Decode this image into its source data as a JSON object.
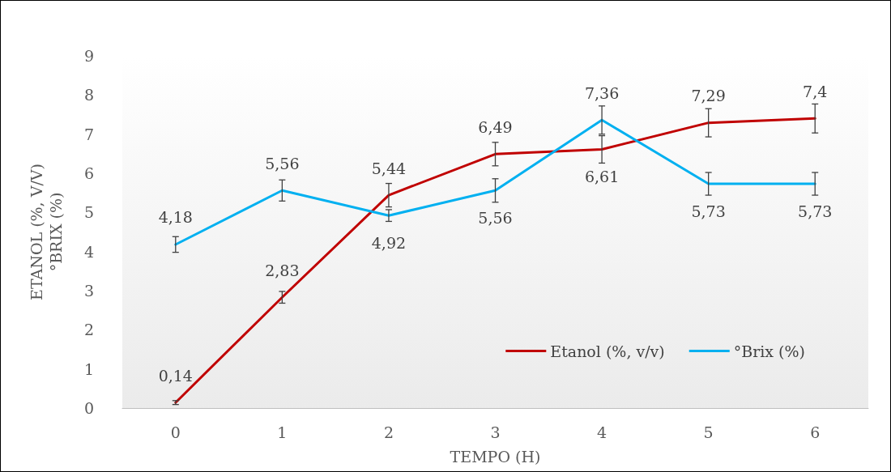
{
  "chart_data": {
    "type": "line",
    "xlabel": "TEMPO (H)",
    "ylabel": "ETANOL (%, V/V)\n°BRIX (%)",
    "categories": [
      "0",
      "1",
      "2",
      "3",
      "4",
      "5",
      "6"
    ],
    "series": [
      {
        "name": "Etanol (%, v/v)",
        "color": "#c00000",
        "values": [
          0.14,
          2.83,
          5.44,
          6.49,
          6.61,
          7.29,
          7.4
        ],
        "value_labels": [
          "0,14",
          "2,83",
          "5,44",
          "6,49",
          "6,61",
          "7,29",
          "7,4"
        ],
        "errors": [
          0.05,
          0.15,
          0.3,
          0.3,
          0.35,
          0.36,
          0.37
        ]
      },
      {
        "name": "°Brix (%)",
        "color": "#00b0f0",
        "values": [
          4.18,
          5.56,
          4.92,
          5.56,
          7.36,
          5.73,
          5.73
        ],
        "value_labels": [
          "4,18",
          "5,56",
          "4,92",
          "5,56",
          "7,36",
          "5,73",
          "5,73"
        ],
        "errors": [
          0.2,
          0.27,
          0.15,
          0.3,
          0.36,
          0.29,
          0.29
        ]
      }
    ],
    "ylim": [
      0,
      9
    ],
    "yticks": [
      0,
      1,
      2,
      3,
      4,
      5,
      6,
      7,
      8,
      9
    ],
    "legend": "bottom right",
    "marker": "none",
    "line_style": "solid"
  }
}
